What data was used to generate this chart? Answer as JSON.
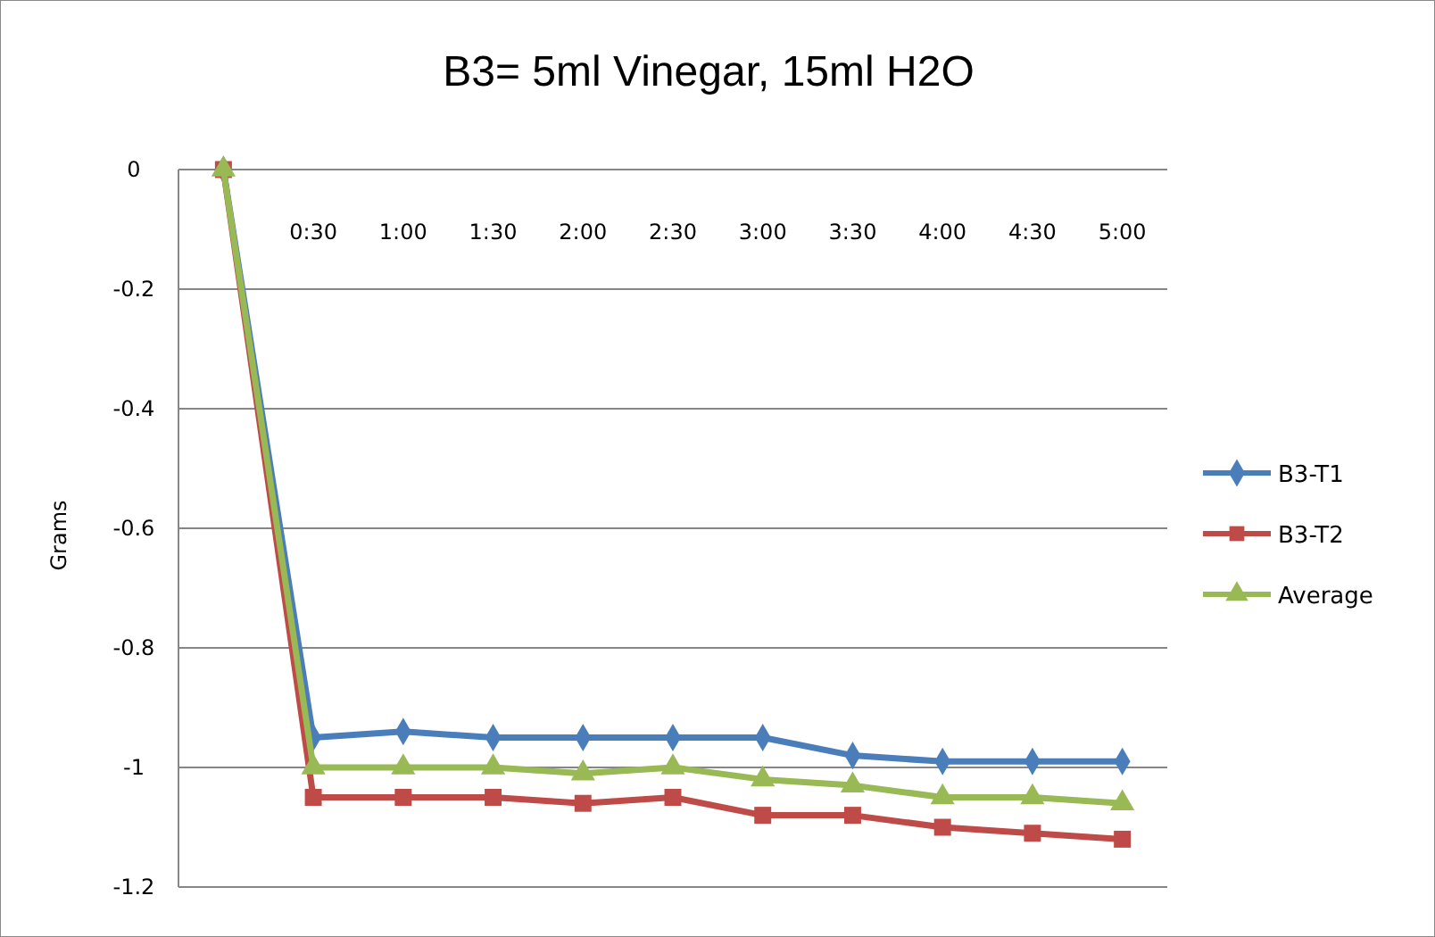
{
  "chart_data": {
    "type": "line",
    "title": "B3= 5ml Vinegar, 15ml H2O",
    "ylabel": "Grams",
    "categories": [
      null,
      "0:30",
      "1:00",
      "1:30",
      "2:00",
      "2:30",
      "3:00",
      "3:30",
      "4:00",
      "4:30",
      "5:00"
    ],
    "series": [
      {
        "name": "B3-T1",
        "color": "#4a7ebb",
        "marker": "diamond",
        "values": [
          0,
          -0.95,
          -0.94,
          -0.95,
          -0.95,
          -0.95,
          -0.95,
          -0.98,
          -0.99,
          -0.99,
          -0.99
        ]
      },
      {
        "name": "B3-T2",
        "color": "#be4b48",
        "marker": "square",
        "values": [
          0,
          -1.05,
          -1.05,
          -1.05,
          -1.06,
          -1.05,
          -1.08,
          -1.08,
          -1.1,
          -1.11,
          -1.12
        ]
      },
      {
        "name": "Average",
        "color": "#98b954",
        "marker": "triangle",
        "values": [
          0,
          -1,
          -1,
          -1,
          -1.01,
          -1,
          -1.02,
          -1.03,
          -1.05,
          -1.05,
          -1.06
        ]
      }
    ],
    "ylim": [
      -1.2,
      0
    ],
    "yticks": [
      0,
      -0.2,
      -0.4,
      -0.6,
      -0.8,
      -1,
      -1.2
    ],
    "grid": "y",
    "legend": "right"
  }
}
